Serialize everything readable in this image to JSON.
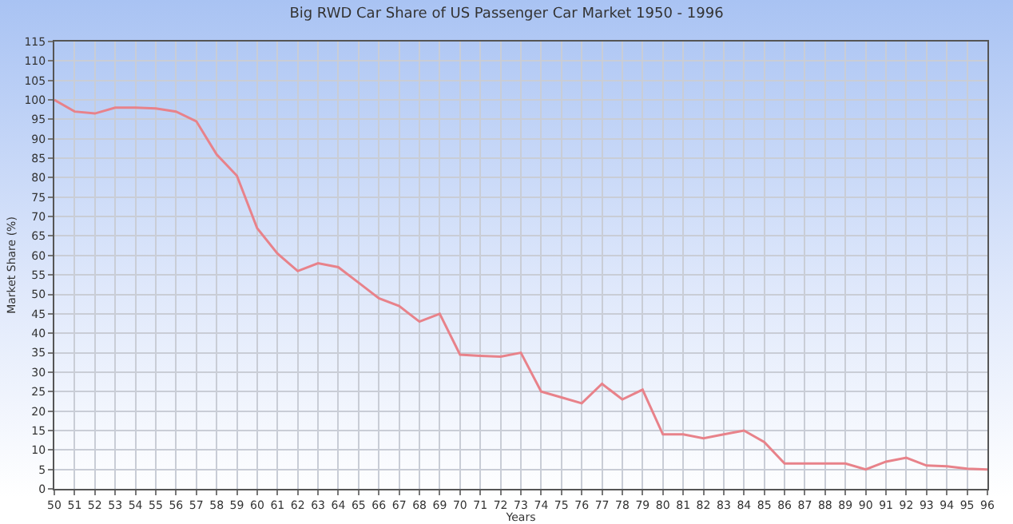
{
  "chart_data": {
    "type": "line",
    "title": "Big RWD Car Share of US Passenger Car Market 1950 - 1996",
    "xlabel": "Years",
    "ylabel": "Market Share (%)",
    "categories": [
      "50",
      "51",
      "52",
      "53",
      "54",
      "55",
      "56",
      "57",
      "58",
      "59",
      "60",
      "61",
      "62",
      "63",
      "64",
      "65",
      "66",
      "67",
      "68",
      "69",
      "70",
      "71",
      "72",
      "73",
      "74",
      "75",
      "76",
      "77",
      "78",
      "79",
      "80",
      "81",
      "82",
      "83",
      "84",
      "85",
      "86",
      "87",
      "88",
      "89",
      "90",
      "91",
      "92",
      "93",
      "94",
      "95",
      "96"
    ],
    "series": [
      {
        "color": "#e8828a",
        "values": [
          100,
          97,
          96.5,
          98,
          98,
          97.8,
          97,
          94.5,
          86,
          80.5,
          67,
          60.5,
          56,
          58,
          57,
          53,
          49,
          47,
          43,
          45,
          34.5,
          34.2,
          34,
          35,
          25,
          23.5,
          22,
          27,
          23,
          25.5,
          14,
          14,
          13,
          14,
          15,
          12,
          6.5,
          6.5,
          6.5,
          6.5,
          5,
          7,
          8,
          6,
          5.8,
          5.2,
          5
        ]
      }
    ],
    "ylim": [
      0,
      115
    ],
    "yticks": [
      0,
      5,
      10,
      15,
      20,
      25,
      30,
      35,
      40,
      45,
      50,
      55,
      60,
      65,
      70,
      75,
      80,
      85,
      90,
      95,
      100,
      105,
      110,
      115
    ],
    "grid": true,
    "marker": "none",
    "line_style": "solid"
  }
}
